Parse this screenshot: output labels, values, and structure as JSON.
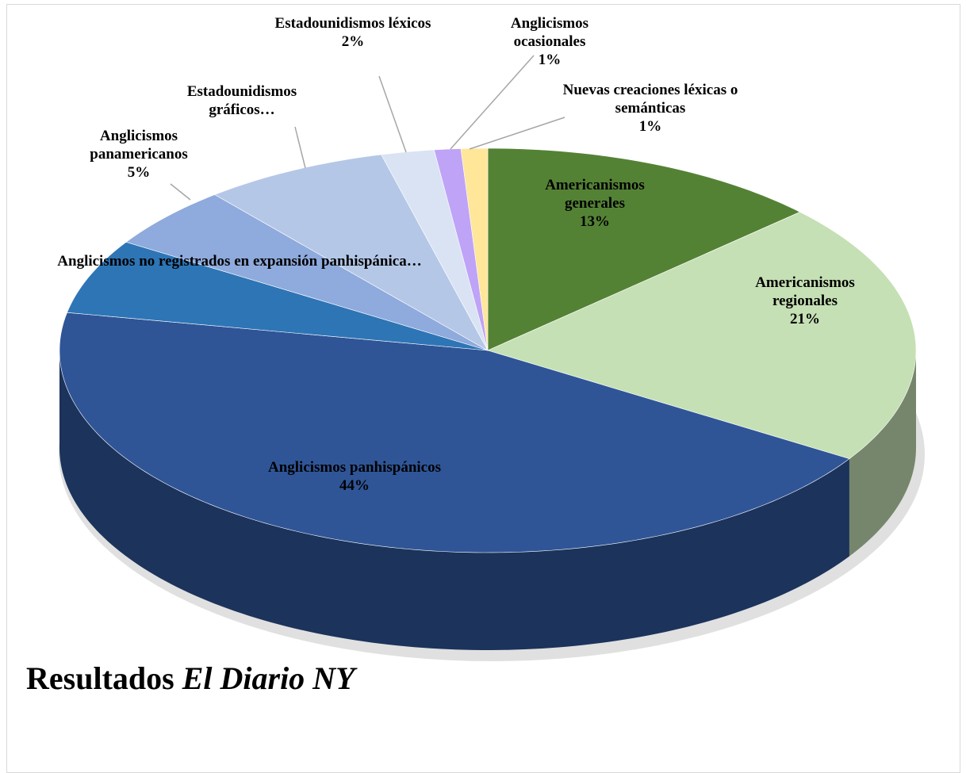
{
  "chart_data": {
    "type": "pie3d",
    "title": "Resultados",
    "title_italic": "El Diario NY",
    "categories": [
      "Americanismos generales",
      "Americanismos regionales",
      "Anglicismos panhispánicos",
      "Anglicismos no registrados en expansión panhispánica…",
      "Anglicismos panamericanos",
      "Estadounidismos gráficos…",
      "Estadounidismos léxicos",
      "Anglicismos ocasionales",
      "Nuevas creaciones léxicas o semánticas"
    ],
    "values": [
      13,
      21,
      44,
      6,
      5,
      7,
      2,
      1,
      1
    ],
    "value_labels": [
      "13%",
      "21%",
      "44%",
      null,
      "5%",
      null,
      "2%",
      "1%",
      "1%"
    ],
    "colors": [
      "#548235",
      "#c5e0b4",
      "#2f5597",
      "#2e75b6",
      "#8faadc",
      "#b4c7e7",
      "#dae3f3",
      "#bfa3f7",
      "#ffe699"
    ]
  }
}
